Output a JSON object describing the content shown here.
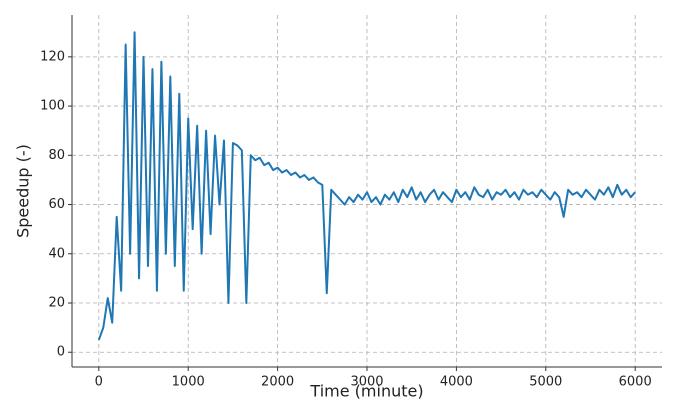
{
  "chart_data": {
    "type": "line",
    "x_label": "Time (minute)",
    "y_label": "Speedup (-)",
    "x": [
      0,
      50,
      100,
      150,
      200,
      250,
      300,
      350,
      400,
      450,
      500,
      550,
      600,
      650,
      700,
      750,
      800,
      850,
      900,
      950,
      1000,
      1050,
      1100,
      1150,
      1200,
      1250,
      1300,
      1350,
      1400,
      1450,
      1500,
      1550,
      1600,
      1650,
      1700,
      1750,
      1800,
      1850,
      1900,
      1950,
      2000,
      2050,
      2100,
      2150,
      2200,
      2250,
      2300,
      2350,
      2400,
      2450,
      2500,
      2550,
      2600,
      2650,
      2700,
      2750,
      2800,
      2850,
      2900,
      2950,
      3000,
      3050,
      3100,
      3150,
      3200,
      3250,
      3300,
      3350,
      3400,
      3450,
      3500,
      3550,
      3600,
      3650,
      3700,
      3750,
      3800,
      3850,
      3900,
      3950,
      4000,
      4050,
      4100,
      4150,
      4200,
      4250,
      4300,
      4350,
      4400,
      4450,
      4500,
      4550,
      4600,
      4650,
      4700,
      4750,
      4800,
      4850,
      4900,
      4950,
      5000,
      5050,
      5100,
      5150,
      5200,
      5250,
      5300,
      5350,
      5400,
      5450,
      5500,
      5550,
      5600,
      5650,
      5700,
      5750,
      5800,
      5850,
      5900,
      5950,
      6000
    ],
    "series": [
      {
        "name": "Speedup",
        "color": "#1f77b4",
        "values": [
          5,
          10,
          22,
          12,
          55,
          25,
          125,
          40,
          130,
          30,
          120,
          35,
          115,
          25,
          118,
          40,
          112,
          35,
          105,
          25,
          95,
          50,
          92,
          40,
          90,
          48,
          88,
          60,
          86,
          20,
          85,
          84,
          82,
          20,
          80,
          78,
          79,
          76,
          77,
          74,
          75,
          73,
          74,
          72,
          73,
          71,
          72,
          70,
          71,
          69,
          68,
          24,
          66,
          64,
          62,
          60,
          63,
          61,
          64,
          62,
          65,
          61,
          63,
          60,
          64,
          62,
          65,
          61,
          66,
          63,
          67,
          62,
          65,
          61,
          64,
          66,
          62,
          65,
          63,
          61,
          66,
          63,
          65,
          62,
          67,
          64,
          63,
          66,
          62,
          65,
          64,
          66,
          63,
          65,
          62,
          66,
          64,
          65,
          63,
          66,
          64,
          62,
          65,
          63,
          55,
          66,
          64,
          65,
          63,
          66,
          64,
          62,
          66,
          64,
          67,
          63,
          68,
          64,
          66,
          63,
          65
        ]
      }
    ],
    "xlim": [
      -300,
      6300
    ],
    "xticks": [
      0,
      1000,
      2000,
      3000,
      4000,
      5000,
      6000
    ],
    "ylim": [
      -6,
      137
    ],
    "yticks": [
      0,
      20,
      40,
      60,
      80,
      100,
      120
    ],
    "grid": true
  }
}
